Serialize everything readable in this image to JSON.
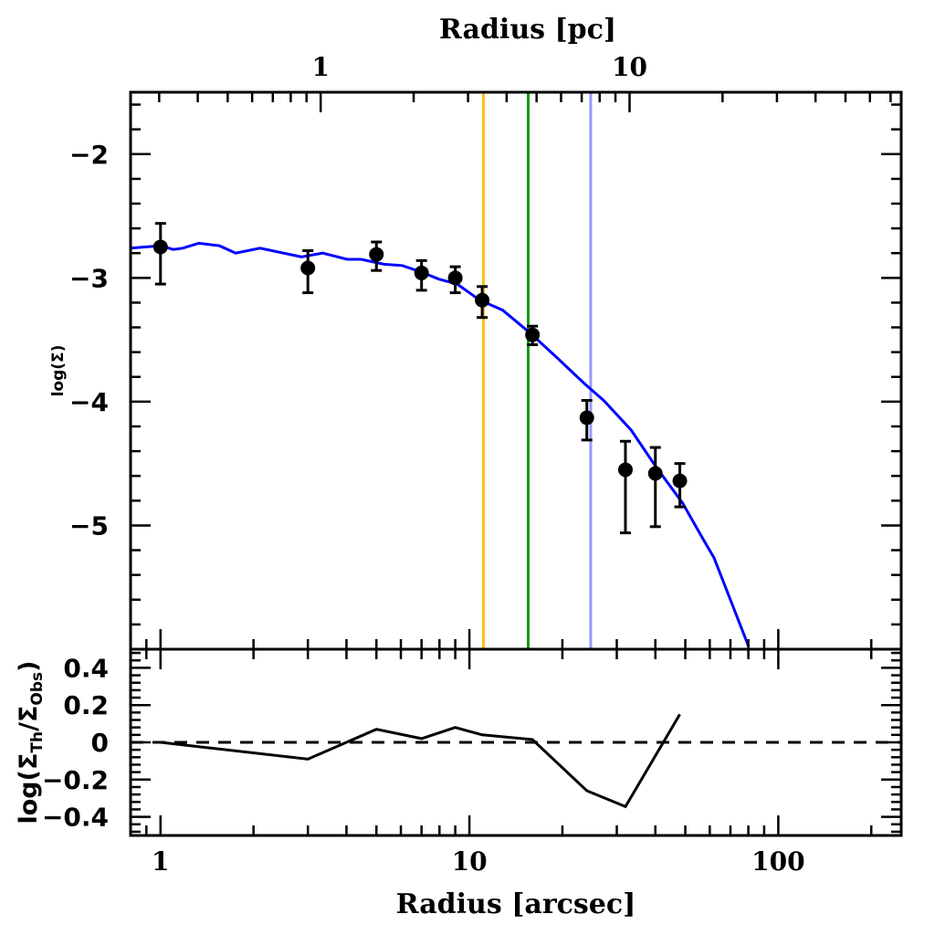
{
  "chart_data": [
    {
      "type": "scatter",
      "panel": "upper",
      "title": "",
      "xlabel": "Radius [arcsec]",
      "ylabel": "log(Σ)",
      "xscale": "log",
      "xlim": [
        0.8,
        250
      ],
      "ylim": [
        -6,
        -1.5
      ],
      "y_ticks": [
        -2,
        -3,
        -4,
        -5
      ],
      "y_tick_labels": [
        "−2",
        "−3",
        "−4",
        "−5"
      ],
      "top_axis": {
        "label": "Radius [pc]",
        "arcsec_per_pc": 3.3,
        "major_ticks": [
          1,
          10
        ],
        "major_tick_labels": [
          "1",
          "10"
        ],
        "minor_ticks": [
          0.3,
          0.4,
          0.5,
          0.6,
          0.7,
          0.8,
          0.9,
          2,
          3,
          4,
          5,
          6,
          7,
          8,
          9,
          20,
          30,
          40,
          50,
          60,
          70
        ]
      },
      "series": [
        {
          "name": "observed",
          "kind": "points-with-errorbars",
          "color": "#000000",
          "x": [
            1.0,
            3.0,
            5.0,
            7.0,
            9.0,
            11.0,
            16.0,
            24.0,
            32.0,
            40.0,
            48.0
          ],
          "y": [
            -2.75,
            -2.92,
            -2.81,
            -2.96,
            -3.0,
            -3.18,
            -3.46,
            -4.13,
            -4.55,
            -4.58,
            -4.64
          ],
          "y_err_low": [
            -3.05,
            -3.12,
            -2.94,
            -3.1,
            -3.12,
            -3.32,
            -3.54,
            -4.31,
            -5.06,
            -5.01,
            -4.85
          ],
          "y_err_high": [
            -2.56,
            -2.78,
            -2.71,
            -2.86,
            -2.91,
            -3.07,
            -3.39,
            -3.99,
            -4.32,
            -4.37,
            -4.5
          ]
        },
        {
          "name": "model",
          "kind": "line",
          "color": "#0000ff",
          "x": [
            0.8,
            1.0,
            1.1,
            1.18,
            1.33,
            1.55,
            1.75,
            2.1,
            2.86,
            3.35,
            4.02,
            4.46,
            5.29,
            6.06,
            6.95,
            7.96,
            9.13,
            10.8,
            12.8,
            15.8,
            19.3,
            23.7,
            27.2,
            33.4,
            40.0,
            49.0,
            57.1,
            61.9,
            80.2
          ],
          "y": [
            -2.76,
            -2.74,
            -2.77,
            -2.76,
            -2.72,
            -2.74,
            -2.8,
            -2.76,
            -2.83,
            -2.8,
            -2.85,
            -2.85,
            -2.89,
            -2.9,
            -2.95,
            -3.01,
            -3.05,
            -3.18,
            -3.26,
            -3.45,
            -3.65,
            -3.86,
            -3.99,
            -4.23,
            -4.52,
            -4.82,
            -5.11,
            -5.26,
            -5.98
          ]
        }
      ],
      "vertical_lines": [
        {
          "name": "radius-marker-yellow",
          "x": 11.1,
          "color": "#ffc010"
        },
        {
          "name": "radius-marker-green",
          "x": 15.5,
          "color": "#139a13"
        },
        {
          "name": "radius-marker-lavender",
          "x": 24.7,
          "color": "#9999ff"
        }
      ],
      "grid": false,
      "legend": "none"
    },
    {
      "type": "line",
      "panel": "lower",
      "xlabel": "Radius [arcsec]",
      "ylabel": "log(ΣTh/ΣObs)",
      "ylabel_parts": {
        "prefix": "log(Σ",
        "sub1": "Th",
        "mid": "/Σ",
        "sub2": "Obs",
        "suffix": ")"
      },
      "xscale": "log",
      "xlim": [
        0.8,
        250
      ],
      "ylim": [
        -0.5,
        0.5
      ],
      "x_ticks": [
        1,
        10,
        100
      ],
      "x_tick_labels": [
        "1",
        "10",
        "100"
      ],
      "y_ticks": [
        0.4,
        0.2,
        0,
        -0.2,
        -0.4
      ],
      "y_tick_labels": [
        "0.4",
        "0.2",
        "0",
        "−0.2",
        "−0.4"
      ],
      "series": [
        {
          "name": "residual",
          "color": "#000000",
          "x": [
            1.0,
            3.0,
            5.0,
            7.0,
            9.0,
            11.0,
            16.0,
            24.0,
            32.0,
            48.0
          ],
          "y": [
            0.0,
            -0.09,
            0.07,
            0.02,
            0.08,
            0.04,
            0.015,
            -0.26,
            -0.345,
            0.15
          ]
        }
      ],
      "reference_line": {
        "y": 0,
        "style": "dashed",
        "color": "#000000"
      },
      "grid": false,
      "legend": "none"
    }
  ]
}
